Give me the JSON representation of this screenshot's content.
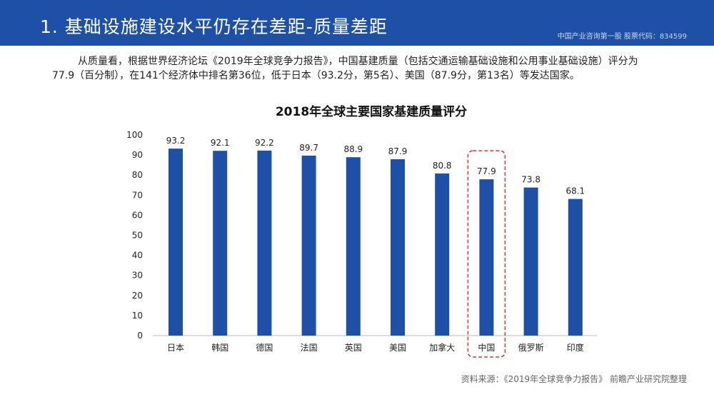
{
  "header": {
    "title": "1. 基础设施建设水平仍存在差距-质量差距",
    "tagline": "中国产业咨询第一股 股票代码：834599"
  },
  "paragraph": {
    "line1": "从质量看，根据世界经济论坛《2019年全球竞争力报告》，中国基建质量（包括交通运输基础设施和公用事业基础设施）评分为",
    "line2": "77.9（百分制），在141个经济体中排名第36位，低于日本（93.2分，第5名）、美国（87.9分，第13名）等发达国家。"
  },
  "chart_data": {
    "type": "bar",
    "title": "2018年全球主要国家基建质量评分",
    "categories": [
      "日本",
      "韩国",
      "德国",
      "法国",
      "英国",
      "美国",
      "加拿大",
      "中国",
      "俄罗斯",
      "印度"
    ],
    "values": [
      93.2,
      92.1,
      92.2,
      89.7,
      88.9,
      87.9,
      80.8,
      77.9,
      73.8,
      68.1
    ],
    "ylim": [
      0,
      100
    ],
    "yticks": [
      0,
      10,
      20,
      30,
      40,
      50,
      60,
      70,
      80,
      90,
      100
    ],
    "grid": false,
    "highlight": "中国",
    "bar_color": "#1f50a8",
    "highlight_color": "#e03030"
  },
  "source": "资料来源：《2019年全球竞争力报告》 前瞻产业研究院整理"
}
